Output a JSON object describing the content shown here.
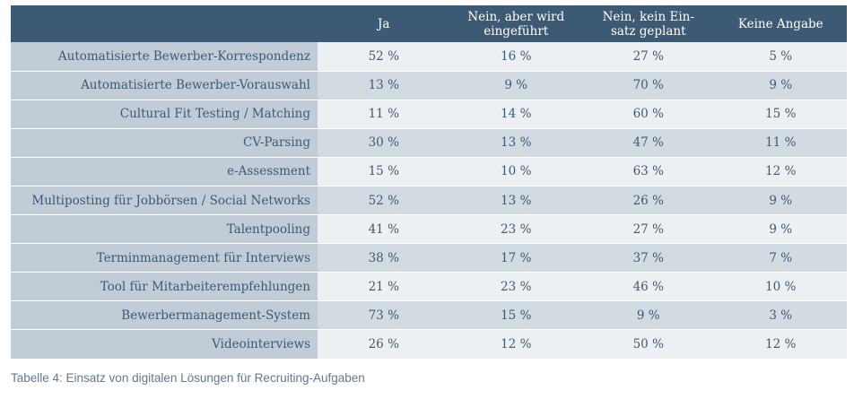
{
  "chart_data": {
    "type": "table",
    "columns": [
      "Ja",
      "Nein, aber wird eingeführt",
      "Nein, kein Ein-satz geplant",
      "Keine Angabe"
    ],
    "column_header_lines": [
      [
        "Ja"
      ],
      [
        "Nein, aber wird",
        "eingeführt"
      ],
      [
        "Nein, kein Ein-",
        "satz geplant"
      ],
      [
        "Keine Angabe"
      ]
    ],
    "rows": [
      {
        "label": "Automatisierte Bewerber-Korrespondenz",
        "values": [
          "52 %",
          "16 %",
          "27 %",
          "5 %"
        ]
      },
      {
        "label": "Automatisierte Bewerber-Vorauswahl",
        "values": [
          "13 %",
          "9 %",
          "70 %",
          "9 %"
        ]
      },
      {
        "label": "Cultural Fit Testing / Matching",
        "values": [
          "11 %",
          "14 %",
          "60 %",
          "15 %"
        ]
      },
      {
        "label": "CV-Parsing",
        "values": [
          "30 %",
          "13 %",
          "47 %",
          "11 %"
        ]
      },
      {
        "label": "e-Assessment",
        "values": [
          "15 %",
          "10 %",
          "63 %",
          "12 %"
        ]
      },
      {
        "label": "Multiposting für Jobbörsen / Social Networks",
        "values": [
          "52 %",
          "13 %",
          "26 %",
          "9 %"
        ]
      },
      {
        "label": "Talentpooling",
        "values": [
          "41 %",
          "23 %",
          "27 %",
          "9 %"
        ]
      },
      {
        "label": "Terminmanagement für Interviews",
        "values": [
          "38 %",
          "17 %",
          "37 %",
          "7 %"
        ]
      },
      {
        "label": "Tool für Mitarbeiterempfehlungen",
        "values": [
          "21 %",
          "23 %",
          "46 %",
          "10 %"
        ]
      },
      {
        "label": "Bewerbermanagement-System",
        "values": [
          "73 %",
          "15 %",
          "9 %",
          "3 %"
        ]
      },
      {
        "label": "Videointerviews",
        "values": [
          "26 %",
          "12 %",
          "50 %",
          "12 %"
        ]
      }
    ],
    "unit": "%"
  },
  "caption": "Tabelle 4: Einsatz von digitalen Lösungen für Recruiting-Aufgaben",
  "colors": {
    "header_bg": "#3d5a74",
    "label_bg": "#c2ccd6",
    "row_light": "#ecf0f3",
    "row_dark": "#d3dbe2",
    "text": "#3d5a74"
  }
}
